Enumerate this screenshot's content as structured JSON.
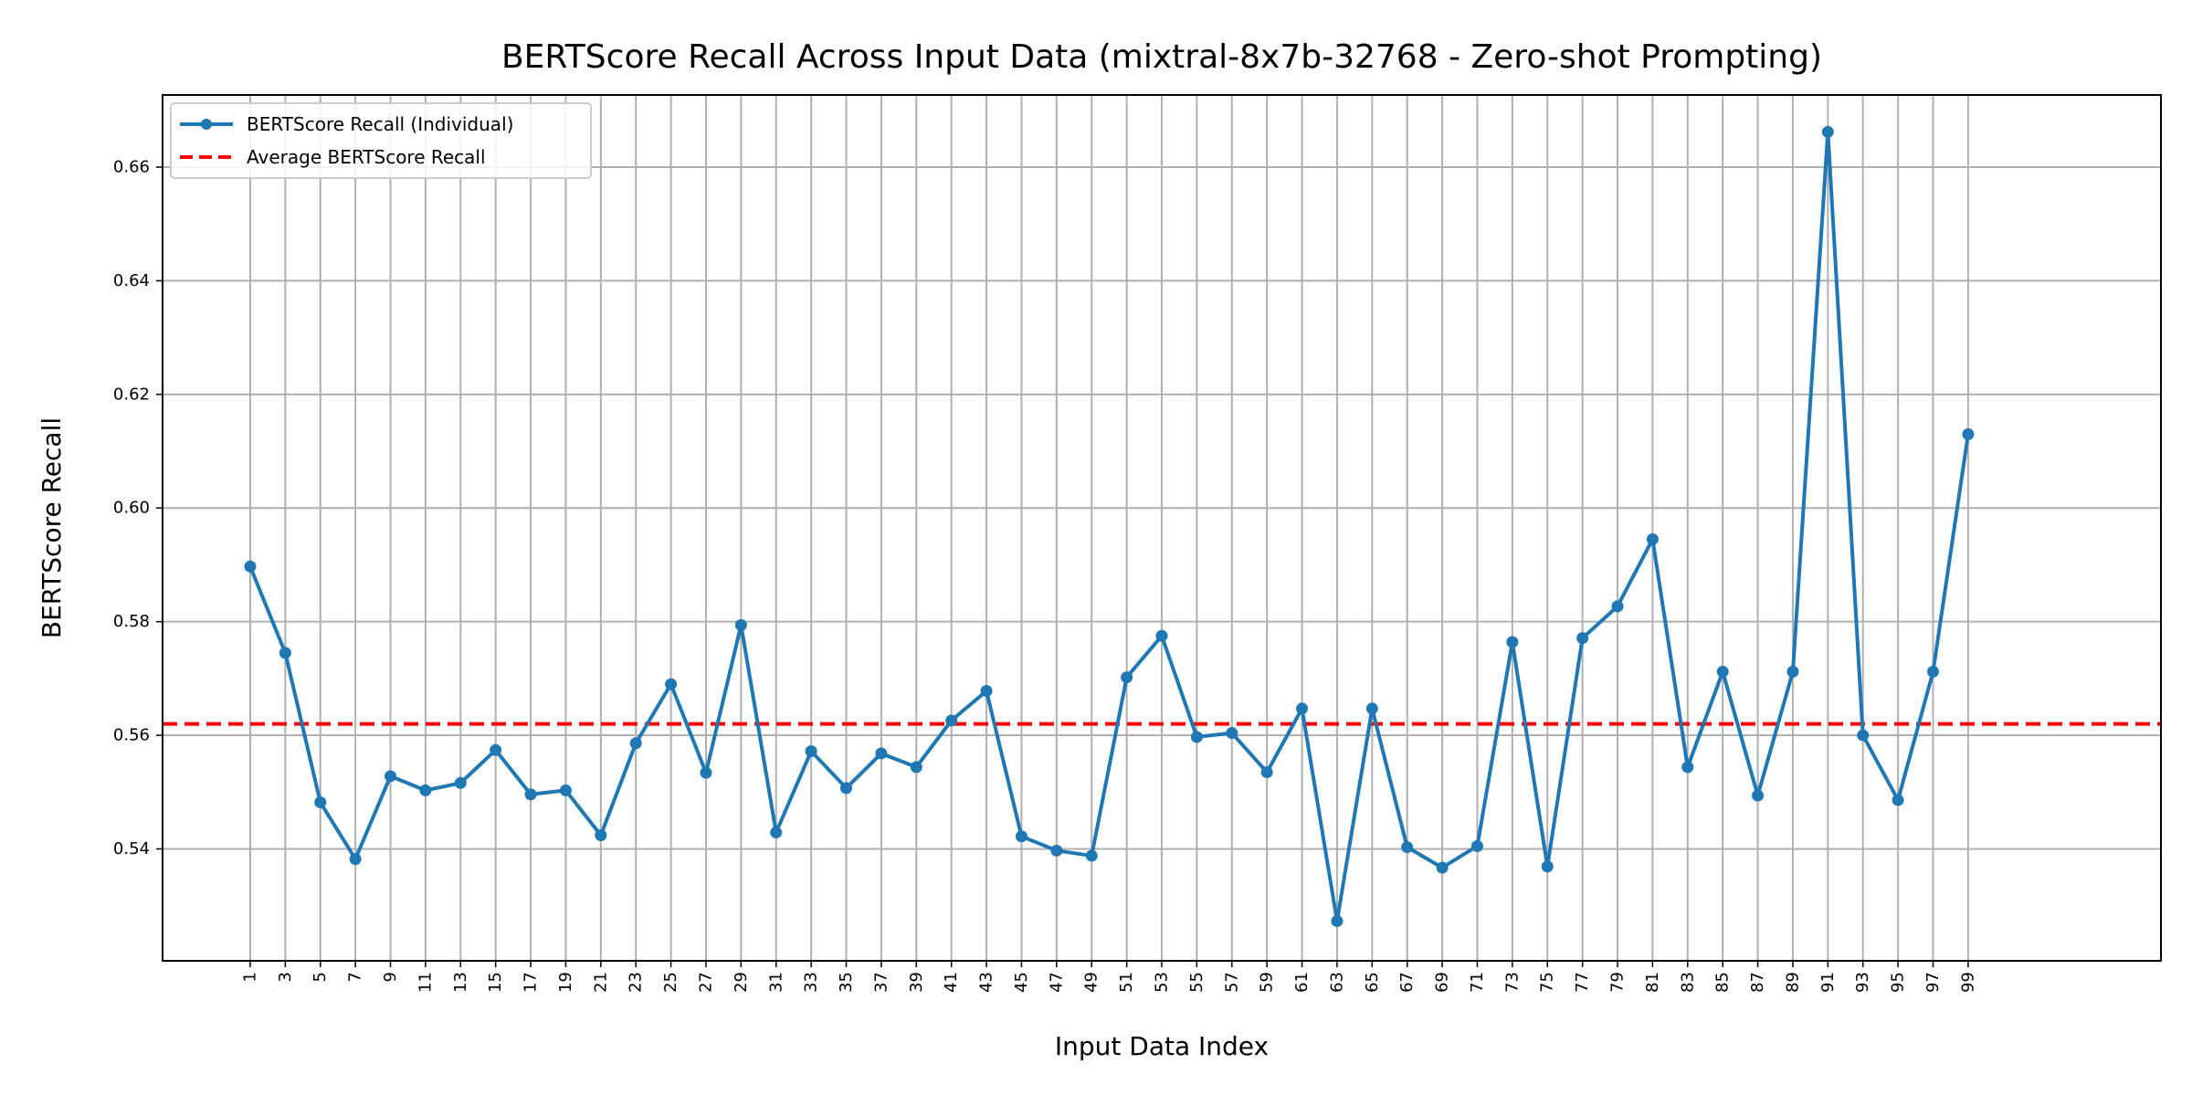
{
  "chart_data": {
    "type": "line",
    "title": "BERTScore Recall Across Input Data (mixtral-8x7b-32768 - Zero-shot Prompting)",
    "xlabel": "Input Data Index",
    "ylabel": "BERTScore Recall",
    "x": [
      1,
      3,
      5,
      7,
      9,
      11,
      13,
      15,
      17,
      19,
      21,
      23,
      25,
      27,
      29,
      31,
      33,
      35,
      37,
      39,
      41,
      43,
      45,
      47,
      49,
      51,
      53,
      55,
      57,
      59,
      61,
      63,
      65,
      67,
      69,
      71,
      73,
      75,
      77,
      79,
      81,
      83,
      85,
      87,
      89,
      91,
      93,
      95,
      97,
      99
    ],
    "xticks": [
      "1",
      "3",
      "5",
      "7",
      "9",
      "11",
      "13",
      "15",
      "17",
      "19",
      "21",
      "23",
      "25",
      "27",
      "29",
      "31",
      "33",
      "35",
      "37",
      "39",
      "41",
      "43",
      "45",
      "47",
      "49",
      "51",
      "53",
      "55",
      "57",
      "59",
      "61",
      "63",
      "65",
      "67",
      "69",
      "71",
      "73",
      "75",
      "77",
      "79",
      "81",
      "83",
      "85",
      "87",
      "89",
      "91",
      "93",
      "95",
      "97",
      "99"
    ],
    "xlim": [
      -4,
      110
    ],
    "ylim": [
      0.5203,
      0.6727
    ],
    "yticks": [
      0.54,
      0.56,
      0.58,
      0.6,
      0.62,
      0.64,
      0.66
    ],
    "ytick_labels": [
      "0.54",
      "0.56",
      "0.58",
      "0.60",
      "0.62",
      "0.64",
      "0.66"
    ],
    "grid": true,
    "legend_position": "top-left",
    "series": [
      {
        "name": "BERTScore Recall (Individual)",
        "color": "#1f77b4",
        "style": "solid-with-markers",
        "values": [
          0.5897,
          0.5745,
          0.5482,
          0.5382,
          0.5528,
          0.5503,
          0.5516,
          0.5574,
          0.5496,
          0.5503,
          0.5424,
          0.5586,
          0.569,
          0.5534,
          0.5794,
          0.5429,
          0.5572,
          0.5507,
          0.5568,
          0.5544,
          0.5626,
          0.5678,
          0.5422,
          0.5397,
          0.5388,
          0.5702,
          0.5775,
          0.5597,
          0.5604,
          0.5535,
          0.5647,
          0.5273,
          0.5647,
          0.5403,
          0.5367,
          0.5405,
          0.5764,
          0.5369,
          0.5771,
          0.5827,
          0.5945,
          0.5544,
          0.5712,
          0.5494,
          0.5712,
          0.6662,
          0.56,
          0.5486,
          0.5712,
          0.613
        ]
      },
      {
        "name": "Average BERTScore Recall",
        "color": "#ff0000",
        "style": "dashed",
        "value": 0.562
      }
    ]
  }
}
